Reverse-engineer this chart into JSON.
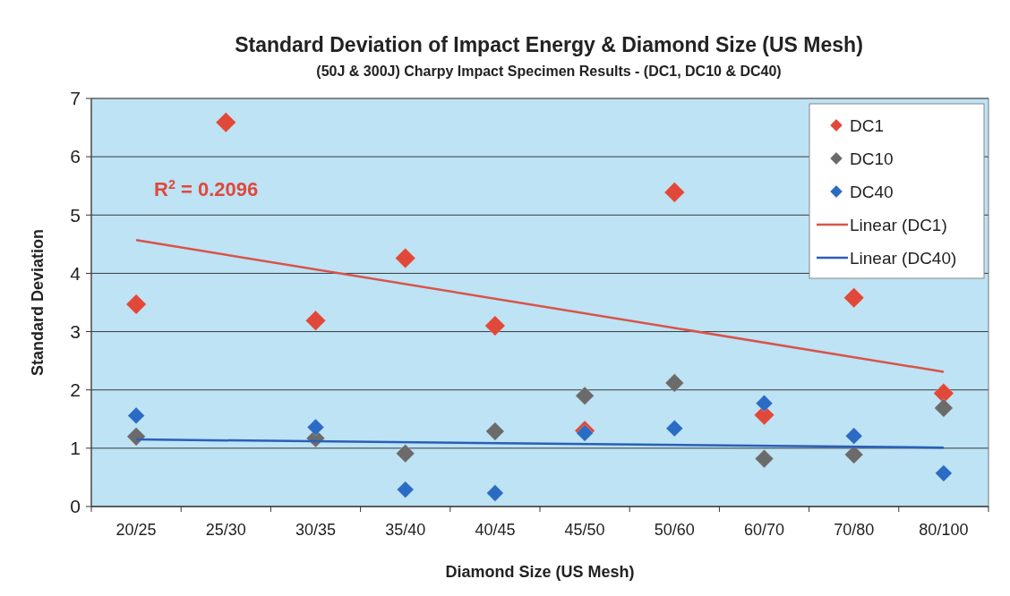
{
  "chart_data": {
    "type": "scatter",
    "title": "Standard Deviation of Impact Energy & Diamond Size (US Mesh)",
    "subtitle": "(50J & 300J) Charpy Impact Specimen Results - (DC1, DC10 & DC40)",
    "xlabel": "Diamond Size (US Mesh)",
    "ylabel": "Standard Deviation",
    "categories": [
      "20/25",
      "25/30",
      "30/35",
      "35/40",
      "40/45",
      "45/50",
      "50/60",
      "60/70",
      "70/80",
      "80/100"
    ],
    "series": [
      {
        "name": "DC1",
        "marker": "diamond",
        "color": "#e0493a",
        "values": [
          3.47,
          6.59,
          3.19,
          4.26,
          3.1,
          1.3,
          5.39,
          1.57,
          3.58,
          1.94
        ]
      },
      {
        "name": "DC10",
        "marker": "diamond",
        "color": "#6b6b6b",
        "values": [
          1.2,
          null,
          1.17,
          0.91,
          1.29,
          1.9,
          2.12,
          0.82,
          0.89,
          1.69
        ]
      },
      {
        "name": "DC40",
        "marker": "diamond",
        "color": "#2a6bc4",
        "values": [
          1.56,
          null,
          1.36,
          0.29,
          0.23,
          1.26,
          1.34,
          1.77,
          1.21,
          0.57
        ]
      },
      {
        "name": "Linear (DC1)",
        "type": "line",
        "color": "#d9534a",
        "x": [
          "20/25",
          "80/100"
        ],
        "values": [
          4.57,
          2.31
        ]
      },
      {
        "name": "Linear (DC40)",
        "type": "line",
        "color": "#2a5fb8",
        "x": [
          "20/25",
          "80/100"
        ],
        "values": [
          1.15,
          1.01
        ]
      }
    ],
    "annotations": [
      "R$^{2}$ = 0.2096"
    ],
    "ylim": [
      0,
      7
    ],
    "yticks": [
      0,
      1,
      2,
      3,
      4,
      5,
      6,
      7
    ],
    "grid": "y",
    "legend": "top right",
    "line_style": "solid"
  }
}
